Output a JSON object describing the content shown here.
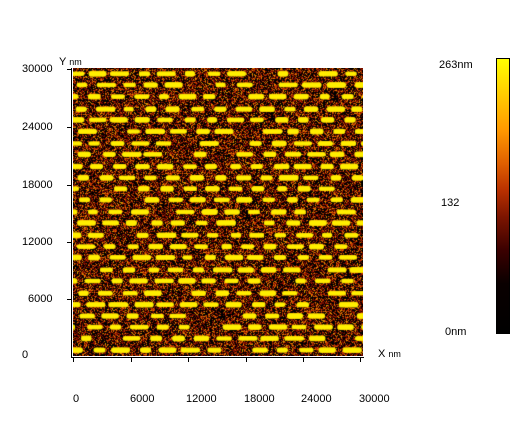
{
  "chart_data": {
    "type": "heatmap",
    "description_units": "nm",
    "y_axis": {
      "label": "Y",
      "unit": "nm",
      "ticks": [
        "30000",
        "24000",
        "18000",
        "12000",
        "6000",
        "0"
      ],
      "range": [
        0,
        30000
      ]
    },
    "x_axis": {
      "label": "X",
      "unit": "nm",
      "ticks": [
        "0",
        "6000",
        "12000",
        "18000",
        "24000",
        "30000"
      ],
      "range": [
        0,
        30000
      ]
    },
    "colorbar": {
      "max_label": "263nm",
      "mid_label": "132",
      "min_label": "0nm",
      "range": [
        0,
        263
      ],
      "colors": [
        "#000000",
        "#3a0000",
        "#b83000",
        "#ff9900",
        "#ffff00"
      ]
    },
    "pattern": {
      "feature_count_estimate": 300
    }
  }
}
